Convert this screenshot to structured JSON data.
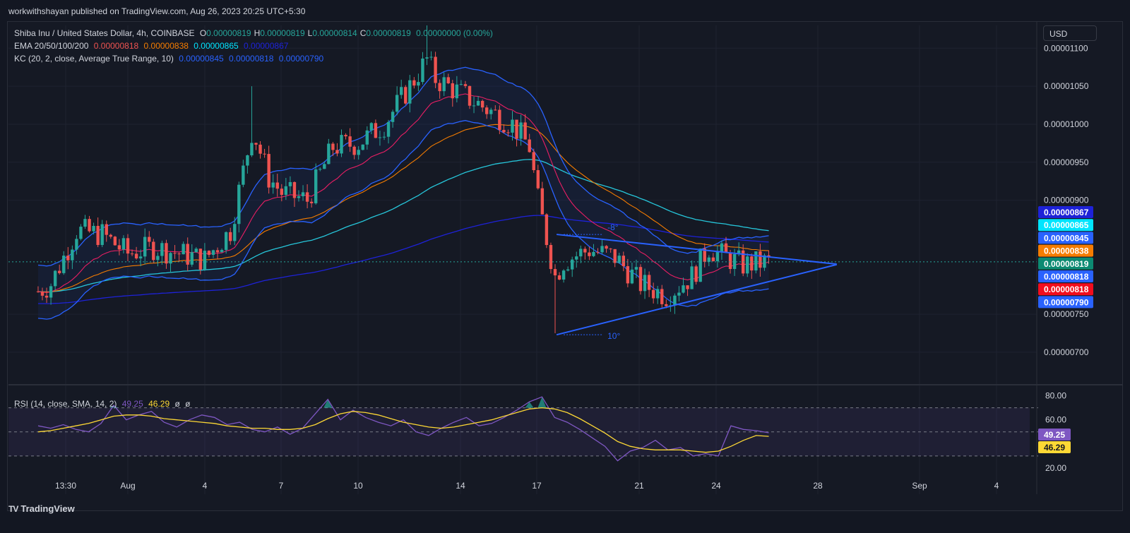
{
  "header": {
    "published": "workwithshayan published on TradingView.com, Aug 26, 2023 20:25 UTC+5:30"
  },
  "legend": {
    "symbol": "Shiba Inu / United States Dollar, 4h, COINBASE",
    "ohlc": [
      {
        "k": "O",
        "v": "0.00000819"
      },
      {
        "k": "H",
        "v": "0.00000819"
      },
      {
        "k": "L",
        "v": "0.00000814"
      },
      {
        "k": "C",
        "v": "0.00000819"
      }
    ],
    "change": "0.00000000 (0.00%)",
    "ema_label": "EMA 20/50/100/200",
    "ema_values": [
      "0.00000818",
      "0.00000838",
      "0.00000865",
      "0.00000867"
    ],
    "kc_label": "KC (20, 2, close, Average True Range, 10)",
    "kc_values": [
      "0.00000845",
      "0.00000818",
      "0.00000790"
    ],
    "rsi_label": "RSI (14, close, SMA, 14, 2)",
    "rsi_values": [
      "49.25",
      "46.29",
      "ø",
      "ø"
    ]
  },
  "currency": "USD",
  "colors": {
    "background": "#151924",
    "up": "#26a69a",
    "down": "#ef5350",
    "ema20": "#e91e63",
    "ema50": "#f57c00",
    "ema100": "#26c6da",
    "ema200": "#1e22d8",
    "kc": "#2962ff",
    "rsi": "#7e57c2",
    "rsi_ma": "#fdd835",
    "trendline": "#2962ff"
  },
  "chart_data": [
    {
      "type": "candlestick",
      "title": "Shiba Inu / United States Dollar, 4h, COINBASE",
      "y_ticks": [
        "0.00001100",
        "0.00001050",
        "0.00001000",
        "0.00000950",
        "0.00000900",
        "0.00000750",
        "0.00000700"
      ],
      "x_ticks": [
        "13:30",
        "Aug",
        "4",
        "7",
        "10",
        "14",
        "17",
        "21",
        "24",
        "28",
        "Sep",
        "4"
      ],
      "ylim": [
        6.6e-06,
        1.13e-05
      ],
      "close_path": [
        {
          "d": "Jul 28 12:00",
          "v": 7.8e-06
        },
        {
          "d": "Jul 29",
          "v": 7.9e-06
        },
        {
          "d": "Jul 30",
          "v": 8.6e-06
        },
        {
          "d": "Jul 31",
          "v": 8.55e-06
        },
        {
          "d": "Aug 1",
          "v": 8.3e-06
        },
        {
          "d": "Aug 2",
          "v": 8.38e-06
        },
        {
          "d": "Aug 3",
          "v": 8.3e-06
        },
        {
          "d": "Aug 4",
          "v": 8.22e-06
        },
        {
          "d": "Aug 5",
          "v": 8.6e-06
        },
        {
          "d": "Aug 5 20:00",
          "v": 9.9e-06
        },
        {
          "d": "Aug 6",
          "v": 9.8e-06
        },
        {
          "d": "Aug 6 12:00",
          "v": 9.3e-06
        },
        {
          "d": "Aug 7",
          "v": 9.1e-06
        },
        {
          "d": "Aug 8",
          "v": 9e-06
        },
        {
          "d": "Aug 9",
          "v": 9.7e-06
        },
        {
          "d": "Aug 10",
          "v": 9.75e-06
        },
        {
          "d": "Aug 11",
          "v": 1e-05
        },
        {
          "d": "Aug 12",
          "v": 1.05e-05
        },
        {
          "d": "Aug 12 16:00",
          "v": 1.085e-05
        },
        {
          "d": "Aug 13",
          "v": 1.06e-05
        },
        {
          "d": "Aug 14",
          "v": 1.04e-05
        },
        {
          "d": "Aug 15",
          "v": 1.02e-05
        },
        {
          "d": "Aug 16",
          "v": 1e-05
        },
        {
          "d": "Aug 16 16:00",
          "v": 9.7e-06
        },
        {
          "d": "Aug 17",
          "v": 9e-06
        },
        {
          "d": "Aug 17 16:00",
          "v": 8e-06
        },
        {
          "d": "Aug 18",
          "v": 8.2e-06
        },
        {
          "d": "Aug 19",
          "v": 8.35e-06
        },
        {
          "d": "Aug 20",
          "v": 8.25e-06
        },
        {
          "d": "Aug 21",
          "v": 7.9e-06
        },
        {
          "d": "Aug 22",
          "v": 7.75e-06
        },
        {
          "d": "Aug 23",
          "v": 8e-06
        },
        {
          "d": "Aug 23 16:00",
          "v": 8.38e-06
        },
        {
          "d": "Aug 24",
          "v": 8.3e-06
        },
        {
          "d": "Aug 25",
          "v": 8.15e-06
        },
        {
          "d": "Aug 26",
          "v": 8.19e-06
        }
      ],
      "trendlines": [
        {
          "name": "resistance",
          "from": {
            "d": "Aug 18",
            "v": 8.55e-06
          },
          "to": {
            "d": "Aug 27",
            "v": 8.22e-06
          },
          "angle_label": "-8°"
        },
        {
          "name": "support",
          "from": {
            "d": "Aug 18",
            "v": 7.23e-06
          },
          "to": {
            "d": "Aug 27",
            "v": 8.01e-06
          },
          "angle_label": "10°"
        }
      ],
      "price_labels": [
        {
          "value": "0.00000867",
          "series": "EMA 200",
          "color": "#1e22d8"
        },
        {
          "value": "0.00000865",
          "series": "EMA 100",
          "color": "#00e5ff"
        },
        {
          "value": "0.00000845",
          "series": "KC upper",
          "color": "#2962ff"
        },
        {
          "value": "0.00000838",
          "series": "EMA 50",
          "color": "#f57c00"
        },
        {
          "value": "0.00000819",
          "series": "Close",
          "color": "#0c8a72"
        },
        {
          "value": "0.00000818",
          "series": "KC basis",
          "color": "#2962ff"
        },
        {
          "value": "0.00000818",
          "series": "EMA 20",
          "color": "#f20d1d"
        },
        {
          "value": "0.00000790",
          "series": "KC lower",
          "color": "#2962ff"
        }
      ]
    },
    {
      "type": "line",
      "title": "RSI (14, close, SMA, 14, 2)",
      "y_ticks": [
        "80.00",
        "60.00",
        "20.00"
      ],
      "bands": [
        70,
        50,
        30
      ],
      "series": [
        {
          "name": "RSI",
          "last": "49.25",
          "values": [
            55,
            53,
            56,
            52,
            50,
            57,
            72,
            60,
            64,
            67,
            58,
            54,
            60,
            64,
            62,
            56,
            58,
            52,
            50,
            54,
            48,
            53,
            65,
            77,
            60,
            68,
            62,
            58,
            55,
            60,
            50,
            47,
            53,
            58,
            62,
            55,
            57,
            62,
            68,
            75,
            79,
            62,
            58,
            52,
            45,
            38,
            26,
            34,
            37,
            43,
            35,
            37,
            30,
            32,
            30,
            55,
            52,
            51,
            49.25
          ]
        },
        {
          "name": "SMA",
          "last": "46.29",
          "values": [
            50,
            51,
            53,
            55,
            57,
            60,
            63,
            64,
            64,
            63,
            61,
            60,
            59,
            58,
            57,
            55,
            54,
            53,
            53,
            52,
            52,
            53,
            56,
            61,
            65,
            67,
            66,
            64,
            61,
            58,
            56,
            54,
            53,
            54,
            56,
            58,
            60,
            63,
            66,
            69,
            70,
            69,
            66,
            61,
            55,
            49,
            42,
            38,
            36,
            35,
            35,
            35,
            34,
            33,
            34,
            38,
            43,
            47,
            46.29
          ]
        }
      ]
    }
  ]
}
